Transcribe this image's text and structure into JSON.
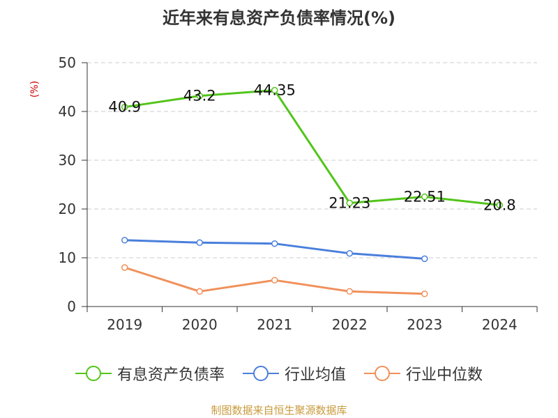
{
  "title": "近年来有息资产负债率情况(%)",
  "source": "制图数据来自恒生聚源数据库",
  "chart_data": {
    "type": "line",
    "title": "近年来有息资产负债率情况(%)",
    "ylabel": "(%)",
    "xlabel": "",
    "ylim": [
      0,
      50
    ],
    "yticks": [
      0,
      10,
      20,
      30,
      40,
      50
    ],
    "grid": true,
    "legend_position": "bottom",
    "categories": [
      "2019",
      "2020",
      "2021",
      "2022",
      "2023",
      "2024"
    ],
    "series": [
      {
        "name": "有息资产负债率",
        "color": "#52c41a",
        "values": [
          40.9,
          43.2,
          44.35,
          21.23,
          22.51,
          20.8
        ],
        "labels": [
          "40.9",
          "43.2",
          "44.35",
          "21.23",
          "22.51",
          "20.8"
        ]
      },
      {
        "name": "行业均值",
        "color": "#4a7fdc",
        "values": [
          13.6,
          13.1,
          12.9,
          10.9,
          9.8,
          null
        ]
      },
      {
        "name": "行业中位数",
        "color": "#f0905a",
        "values": [
          8.0,
          3.1,
          5.4,
          3.1,
          2.6,
          null
        ]
      }
    ]
  }
}
